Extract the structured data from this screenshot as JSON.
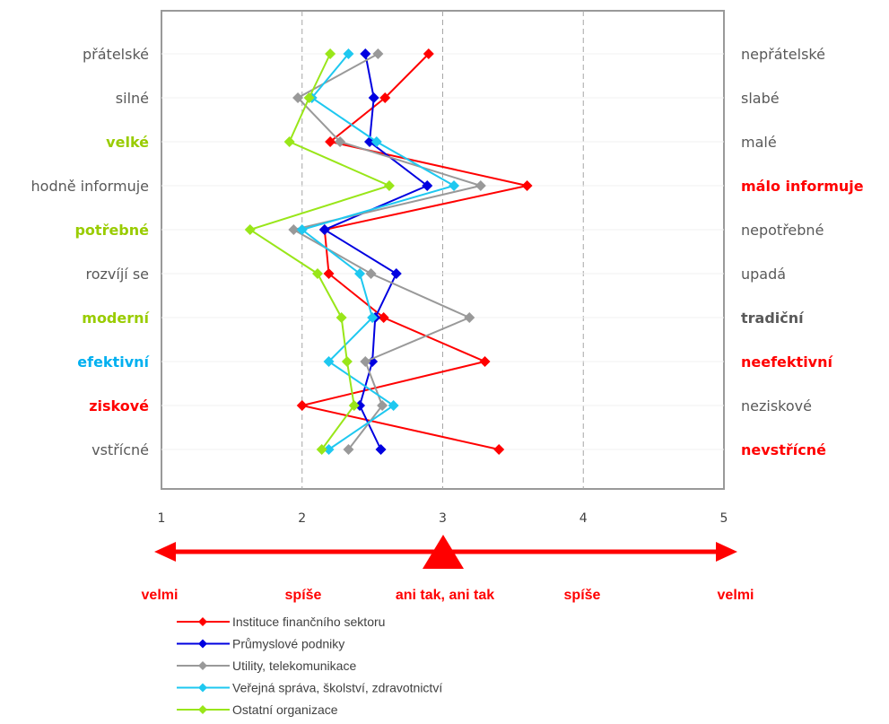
{
  "chart_data": {
    "type": "line",
    "xlim": [
      1,
      5
    ],
    "x_ticks": [
      "1",
      "2",
      "3",
      "4",
      "5"
    ],
    "left_labels": [
      {
        "text": "přátelské",
        "color": "#595959",
        "bold": false
      },
      {
        "text": "silné",
        "color": "#595959",
        "bold": false
      },
      {
        "text": "velké",
        "color": "#99cc00",
        "bold": true
      },
      {
        "text": "hodně informuje",
        "color": "#595959",
        "bold": false
      },
      {
        "text": "potřebné",
        "color": "#99cc00",
        "bold": true
      },
      {
        "text": "rozvíjí se",
        "color": "#595959",
        "bold": false
      },
      {
        "text": "moderní",
        "color": "#99cc00",
        "bold": true
      },
      {
        "text": "efektivní",
        "color": "#00b0f0",
        "bold": true
      },
      {
        "text": "ziskové",
        "color": "#ff0000",
        "bold": true
      },
      {
        "text": "vstřícné",
        "color": "#595959",
        "bold": false
      }
    ],
    "right_labels": [
      {
        "text": "nepřátelské",
        "color": "#595959",
        "bold": false
      },
      {
        "text": "slabé",
        "color": "#595959",
        "bold": false
      },
      {
        "text": "malé",
        "color": "#595959",
        "bold": false
      },
      {
        "text": "málo informuje",
        "color": "#ff0000",
        "bold": true
      },
      {
        "text": "nepotřebné",
        "color": "#595959",
        "bold": false
      },
      {
        "text": "upadá",
        "color": "#595959",
        "bold": false
      },
      {
        "text": "tradiční",
        "color": "#595959",
        "bold": true
      },
      {
        "text": "neefektivní",
        "color": "#ff0000",
        "bold": true
      },
      {
        "text": "neziskové",
        "color": "#595959",
        "bold": false
      },
      {
        "text": "nevstřícné",
        "color": "#ff0000",
        "bold": true
      }
    ],
    "series": [
      {
        "name": "Instituce finančního sektoru",
        "color": "#ff0000",
        "values": [
          2.9,
          2.59,
          2.2,
          3.6,
          2.16,
          2.19,
          2.58,
          3.3,
          2.0,
          3.4
        ]
      },
      {
        "name": "Průmyslové podniky",
        "color": "#0000e0",
        "values": [
          2.45,
          2.51,
          2.48,
          2.89,
          2.16,
          2.67,
          2.52,
          2.5,
          2.41,
          2.56
        ]
      },
      {
        "name": "Utility, telekomunikace",
        "color": "#999999",
        "values": [
          2.54,
          1.97,
          2.27,
          3.27,
          1.94,
          2.49,
          3.19,
          2.45,
          2.57,
          2.33
        ]
      },
      {
        "name": "Veřejná správa, školství, zdravotnictví",
        "color": "#1ec8f0",
        "values": [
          2.33,
          2.07,
          2.53,
          3.08,
          2.0,
          2.41,
          2.5,
          2.19,
          2.65,
          2.19
        ]
      },
      {
        "name": "Ostatní organizace",
        "color": "#99e619",
        "values": [
          2.2,
          2.05,
          1.91,
          2.62,
          1.63,
          2.11,
          2.28,
          2.32,
          2.37,
          2.14
        ]
      }
    ],
    "scale_labels": [
      "velmi",
      "spíše",
      "ani tak, ani tak",
      "spíše",
      "velmi"
    ],
    "grid": "vertical dashed",
    "legend_position": "bottom-left"
  }
}
